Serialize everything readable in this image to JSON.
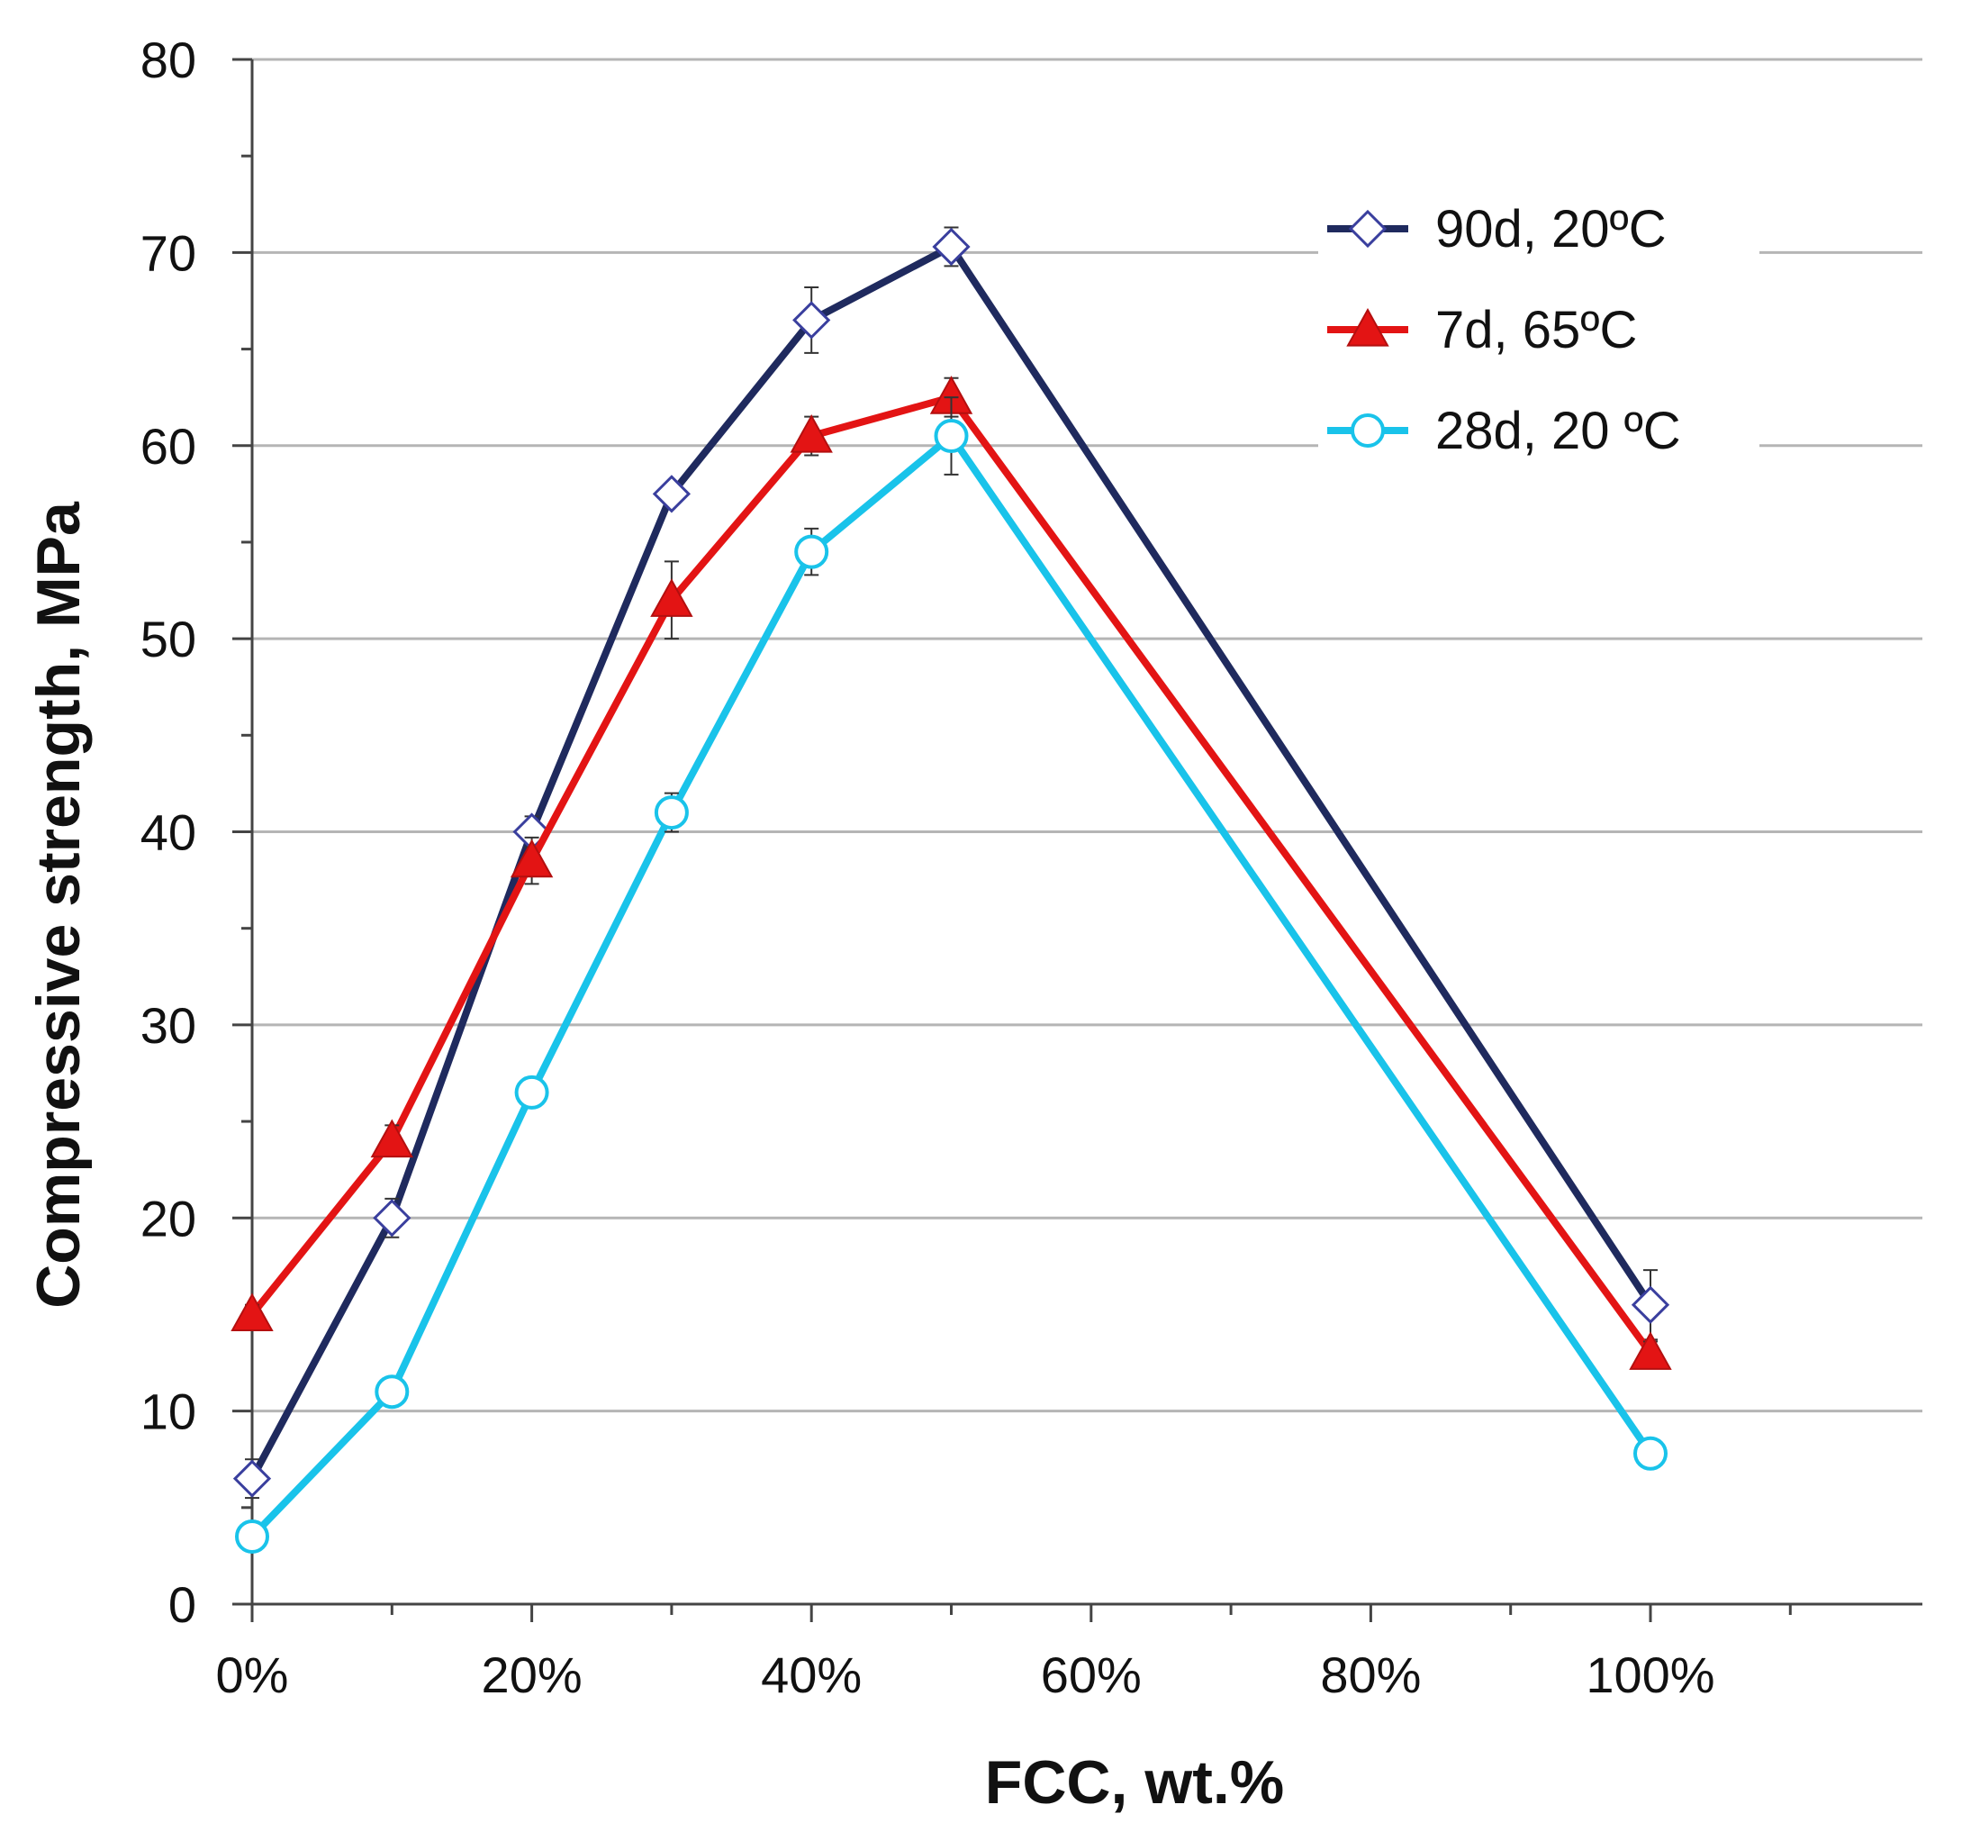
{
  "chart_data": {
    "type": "line",
    "title": "",
    "xlabel": "FCC, wt.%",
    "ylabel": "Compressive strength, MPa",
    "x": [
      0,
      10,
      20,
      30,
      40,
      50,
      100
    ],
    "xlim": [
      0,
      120
    ],
    "ylim": [
      0,
      80
    ],
    "x_ticks": [
      0,
      20,
      40,
      60,
      80,
      100
    ],
    "x_tick_labels": [
      "0%",
      "20%",
      "40%",
      "60%",
      "80%",
      "100%"
    ],
    "y_ticks": [
      0,
      10,
      20,
      30,
      40,
      50,
      60,
      70,
      80
    ],
    "y_tick_labels": [
      "0",
      "10",
      "20",
      "30",
      "40",
      "50",
      "60",
      "70",
      "80"
    ],
    "grid": true,
    "legend_position": "top-right",
    "series": [
      {
        "name": "90d, 20ºC",
        "color": "#1f2a5e",
        "marker": "diamond-open",
        "values": [
          6.5,
          20,
          40,
          57.5,
          66.5,
          70.3,
          15.5
        ],
        "errors": [
          1.0,
          1.0,
          0.8,
          0.5,
          1.7,
          1.0,
          1.8
        ]
      },
      {
        "name": "7d, 65ºC",
        "color": "#e31414",
        "marker": "triangle-filled",
        "values": [
          15,
          24,
          38.5,
          52,
          60.5,
          62.5,
          13
        ],
        "errors": [
          0.5,
          0.8,
          1.2,
          2.0,
          1.0,
          1.0,
          0.6
        ]
      },
      {
        "name": "28d, 20 ºC",
        "color": "#19c3ea",
        "marker": "circle-open",
        "values": [
          3.5,
          11,
          26.5,
          41,
          54.5,
          60.5,
          7.8
        ],
        "errors": [
          0.5,
          0.5,
          0.5,
          1.0,
          1.2,
          2.0,
          0.5
        ]
      }
    ]
  }
}
